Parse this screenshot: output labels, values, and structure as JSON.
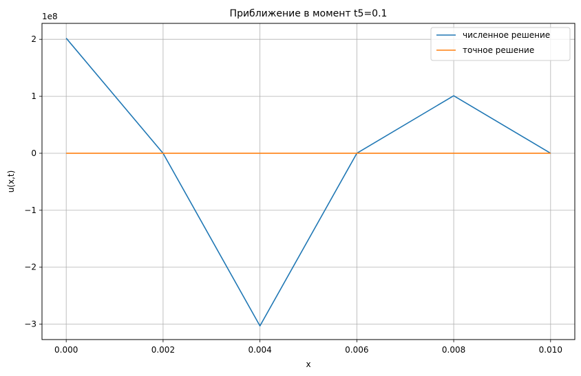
{
  "chart_data": {
    "type": "line",
    "title": "Приближение в момент t5=0.1",
    "xlabel": "x",
    "ylabel": "u(x,t)",
    "y_multiplier_label": "1e8",
    "x": [
      0.0,
      0.002,
      0.004,
      0.006,
      0.008,
      0.01
    ],
    "xlim": [
      -0.0005,
      0.0105
    ],
    "ylim": [
      -3.27,
      2.28
    ],
    "x_ticks": [
      "0.000",
      "0.002",
      "0.004",
      "0.006",
      "0.008",
      "0.010"
    ],
    "y_ticks": [
      "−3",
      "−2",
      "−1",
      "0",
      "1",
      "2"
    ],
    "y_tick_values": [
      -3,
      -2,
      -1,
      0,
      1,
      2
    ],
    "grid": true,
    "legend_position": "top-right",
    "series": [
      {
        "name": "численное решение",
        "color": "#1f77b4",
        "values": [
          2.02,
          0.0,
          -3.03,
          0.0,
          1.01,
          0.0
        ]
      },
      {
        "name": "точное решение",
        "color": "#ff7f0e",
        "values": [
          0.0,
          0.0,
          0.0,
          0.0,
          0.0,
          0.0
        ]
      }
    ]
  }
}
